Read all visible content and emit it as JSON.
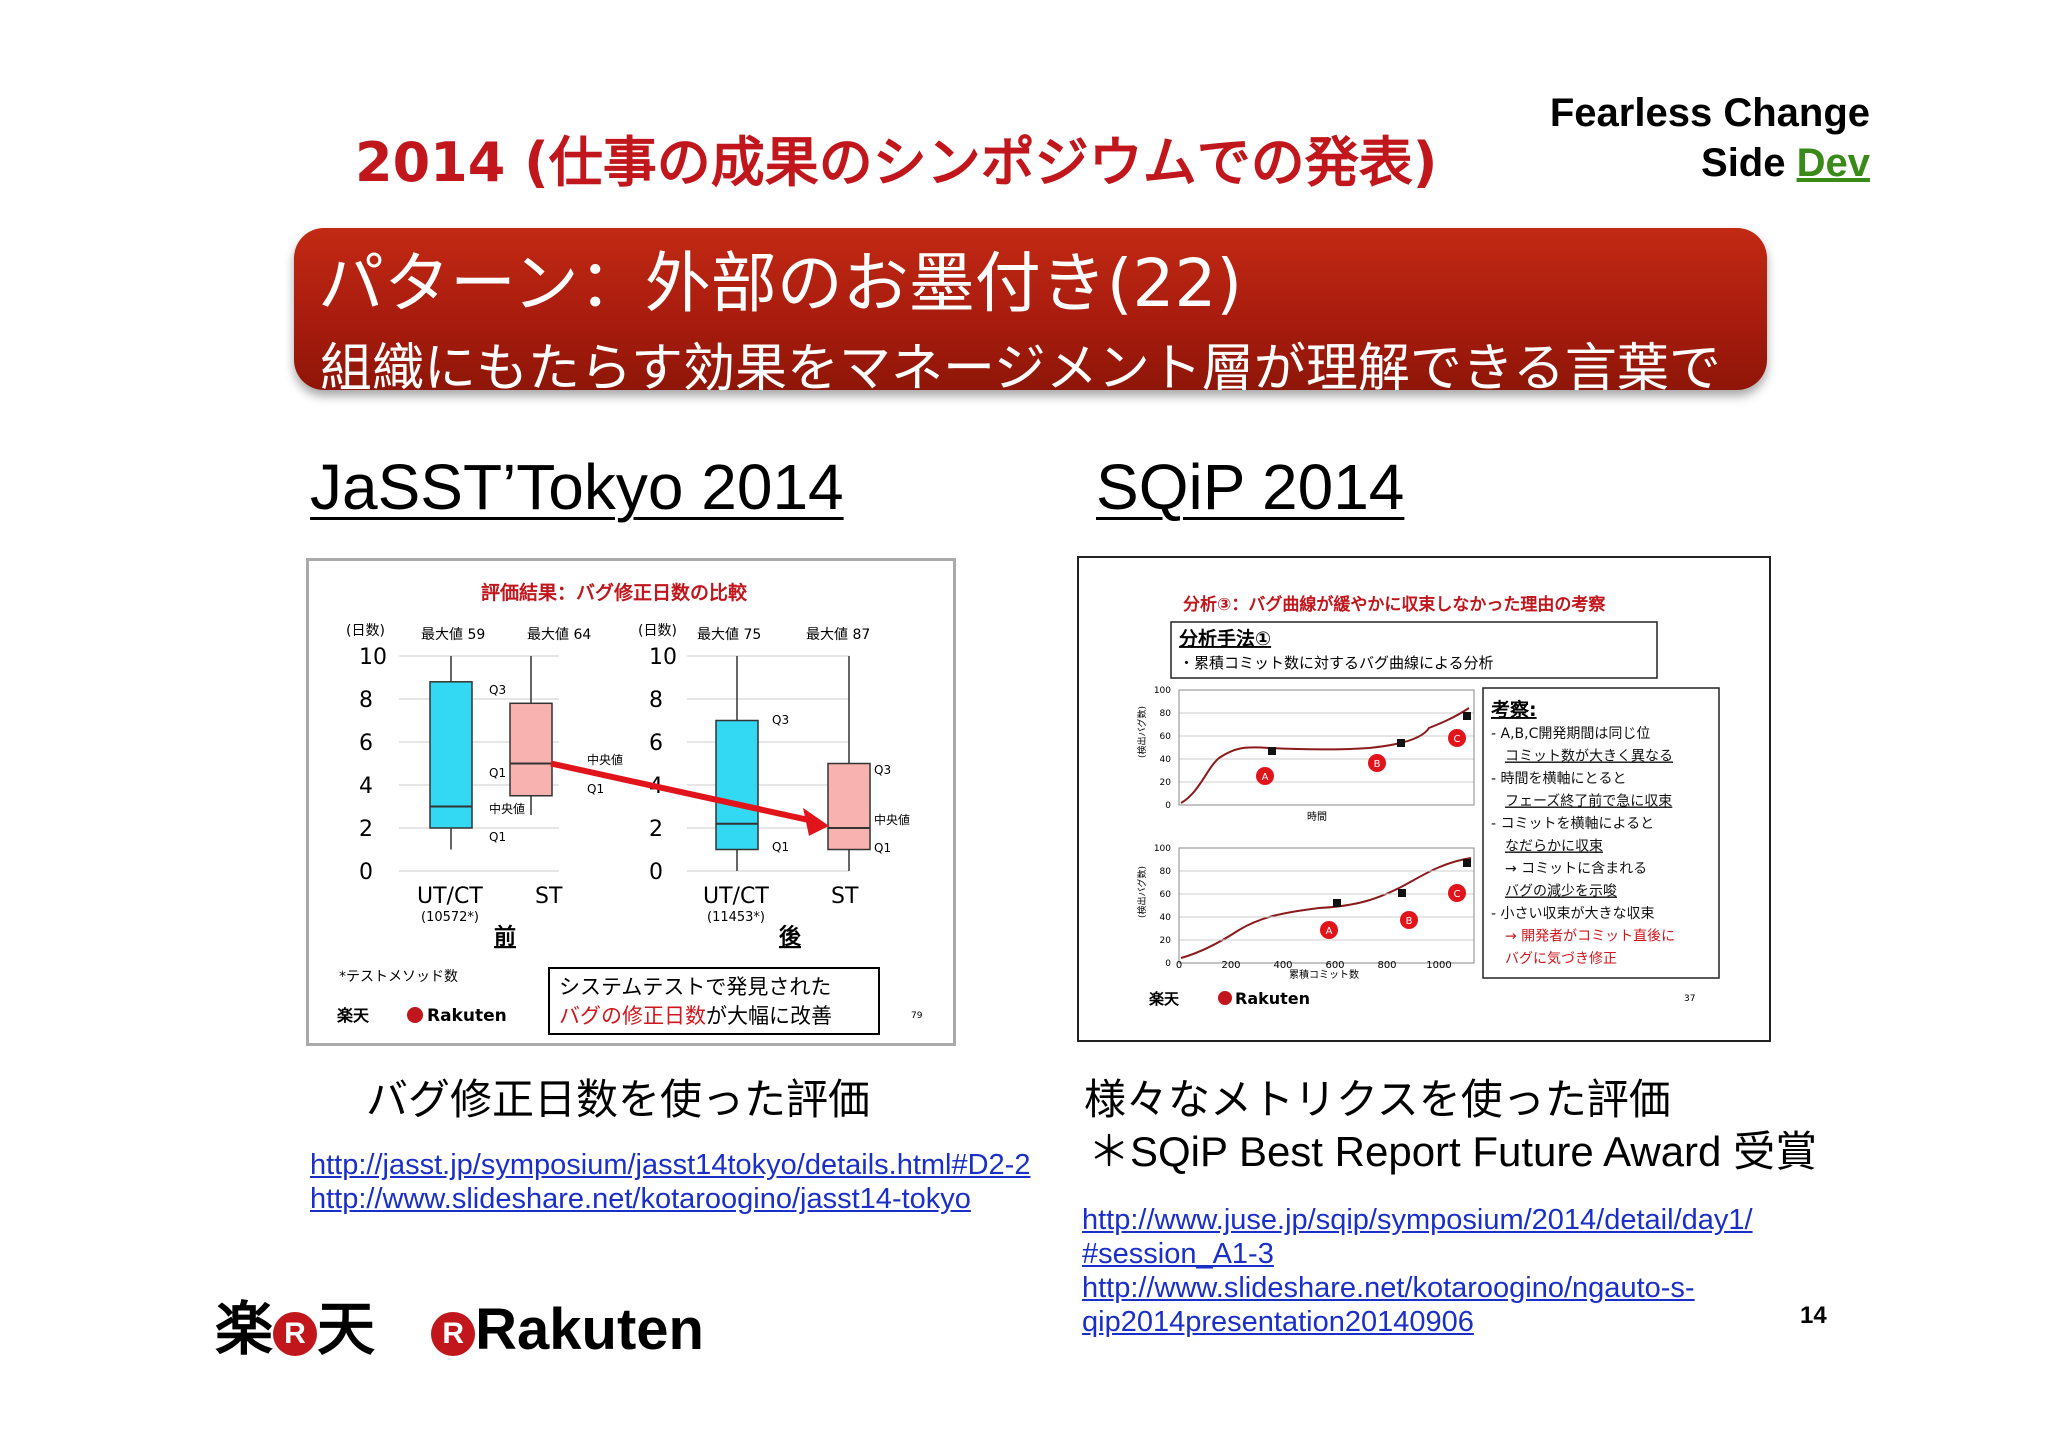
{
  "title": "2014 (仕事の成果のシンポジウムでの発表)",
  "brand": {
    "line1": "Fearless Change",
    "line2_a": "Side ",
    "line2_b": "Dev"
  },
  "banner": {
    "line1": "パターン：外部のお墨付き(22)",
    "line2": "組織にもたらす効果をマネージメント層が理解できる言葉で"
  },
  "left": {
    "heading": "JaSST’Tokyo 2014",
    "caption": "バグ修正日数を使った評価",
    "links": [
      "http://jasst.jp/symposium/jasst14tokyo/details.html#D2-2",
      "http://www.slideshare.net/kotaroogino/jasst14-tokyo"
    ],
    "figure": {
      "title": "評価結果：バグ修正日数の比較",
      "y_unit": "(日数)",
      "yticks": [
        "10",
        "8",
        "6",
        "4",
        "2",
        "0"
      ],
      "max_labels": [
        "最大値 59",
        "最大値 64",
        "最大値 75",
        "最大値 87"
      ],
      "q3": "Q3",
      "q1": "Q1",
      "median": "中央値",
      "cat_a": "UT/CT",
      "cat_b": "ST",
      "count_before": "(10572*)",
      "count_after": "(11453*)",
      "before": "前",
      "after": "後",
      "footnote": "*テストメソッド数",
      "box_line1": "システムテストで発見された",
      "box_line2_red": "バグの修正日数",
      "box_line2_black": "が大幅に改善",
      "logo_jp": "楽天",
      "logo_en": "Rakuten",
      "page": "79"
    }
  },
  "chart_data": {
    "type": "box",
    "title": "評価結果：バグ修正日数の比較",
    "ylabel": "(日数)",
    "ylim": [
      0,
      10
    ],
    "groups": [
      {
        "name": "前",
        "boxes": [
          {
            "category": "UT/CT",
            "count": "(10572*)",
            "q1": 2,
            "median": 3,
            "q3": 8.8,
            "whisker_low": 1,
            "whisker_high": 10,
            "max_label": "最大値 59",
            "color": "#33d9f2"
          },
          {
            "category": "ST",
            "q1": 3.5,
            "median": 5,
            "q3": 7.8,
            "whisker_low": 2.6,
            "whisker_high": 10,
            "max_label": "最大値 64",
            "color": "#f8b3b0"
          }
        ]
      },
      {
        "name": "後",
        "boxes": [
          {
            "category": "UT/CT",
            "count": "(11453*)",
            "q1": 1,
            "median": 2.2,
            "q3": 7,
            "whisker_low": 0,
            "whisker_high": 10,
            "max_label": "最大値 75",
            "color": "#33d9f2"
          },
          {
            "category": "ST",
            "q1": 1,
            "median": 2,
            "q3": 5,
            "whisker_low": 0,
            "whisker_high": 10,
            "max_label": "最大値 87",
            "color": "#f8b3b0"
          }
        ]
      }
    ]
  },
  "right": {
    "heading": "SQiP 2014",
    "caption1": "様々なメトリクスを使った評価",
    "caption2": "＊SQiP Best Report Future Award 受賞",
    "links": [
      "http://www.juse.jp/sqip/symposium/2014/detail/day1/",
      "#session_A1-3",
      "http://www.slideshare.net/kotaroogino/ngauto-s-",
      "qip2014presentation20140906"
    ],
    "figure": {
      "title": "分析③：バグ曲線が緩やかに収束しなかった理由の考察",
      "method": "分析手法①",
      "method_note": "・累積コミット数に対するバグ曲線による分析",
      "yticks": [
        "100",
        "80",
        "60",
        "40",
        "20",
        "0"
      ],
      "ylabel": "(検出バグ数)",
      "xlabel_top": "時間",
      "xticks": [
        "0",
        "200",
        "400",
        "600",
        "800",
        "1000"
      ],
      "xlabel_bottom": "累積コミット数",
      "markers": [
        "A",
        "B",
        "C"
      ],
      "kousatsu_title": "考察:",
      "kousatsu": [
        "- A,B,C開発期間は同じ位",
        "コミット数が大きく異なる",
        "- 時間を横軸にとると",
        "フェーズ終了前で急に収束",
        "- コミットを横軸によると",
        "なだらかに収束",
        "→ コミットに含まれる",
        "バグの減少を示唆",
        "- 小さい収束が大きな収束",
        "→ 開発者がコミット直後に",
        "バグに気づき修正"
      ],
      "logo_jp": "楽天",
      "logo_en": "Rakuten",
      "page": "37"
    }
  },
  "footer": {
    "logo_jp_a": "楽",
    "logo_r": "R",
    "logo_jp_b": "天",
    "logo_en": "Rakuten",
    "page_number": "14"
  }
}
